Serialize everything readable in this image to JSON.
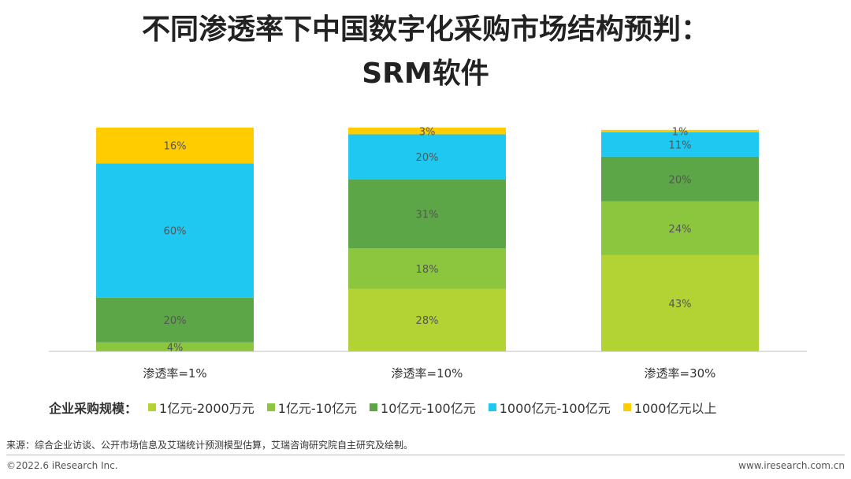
{
  "title_line1": "不同渗透率下中国数字化采购市场结构预判：",
  "title_line2": "SRM软件",
  "legend_label": "企业采购规模：",
  "source": "来源：综合企业访谈、公开市场信息及艾瑞统计预测模型估算，艾瑞咨询研究院自主研究及绘制。",
  "copyright": "©2022.6 iResearch Inc.",
  "website": "www.iresearch.com.cn",
  "chart_data": {
    "type": "bar",
    "stacked": true,
    "percent": true,
    "categories": [
      "渗透率=1%",
      "渗透率=10%",
      "渗透率=30%"
    ],
    "series": [
      {
        "name": "1亿元-2000万元",
        "values": [
          0,
          28,
          43
        ],
        "labels": [
          "",
          "28%",
          "43%"
        ],
        "color": "#b3d234"
      },
      {
        "name": "1亿元-10亿元",
        "values": [
          4,
          18,
          24
        ],
        "labels": [
          "4%",
          "18%",
          "24%"
        ],
        "color": "#8cc63f"
      },
      {
        "name": "10亿元-100亿元",
        "values": [
          20,
          31,
          20
        ],
        "labels": [
          "20%",
          "31%",
          "20%"
        ],
        "color": "#5da648"
      },
      {
        "name": "1000亿元-100亿元",
        "values": [
          60,
          20,
          11
        ],
        "labels": [
          "60%",
          "20%",
          "11%"
        ],
        "color": "#1ec8f0"
      },
      {
        "name": "1000亿元以上",
        "values": [
          16,
          3,
          1
        ],
        "labels": [
          "16%",
          "3%",
          "1%"
        ],
        "color": "#ffcc00"
      }
    ],
    "ylim": [
      0,
      100
    ],
    "grid": false,
    "legend_position": "bottom"
  }
}
